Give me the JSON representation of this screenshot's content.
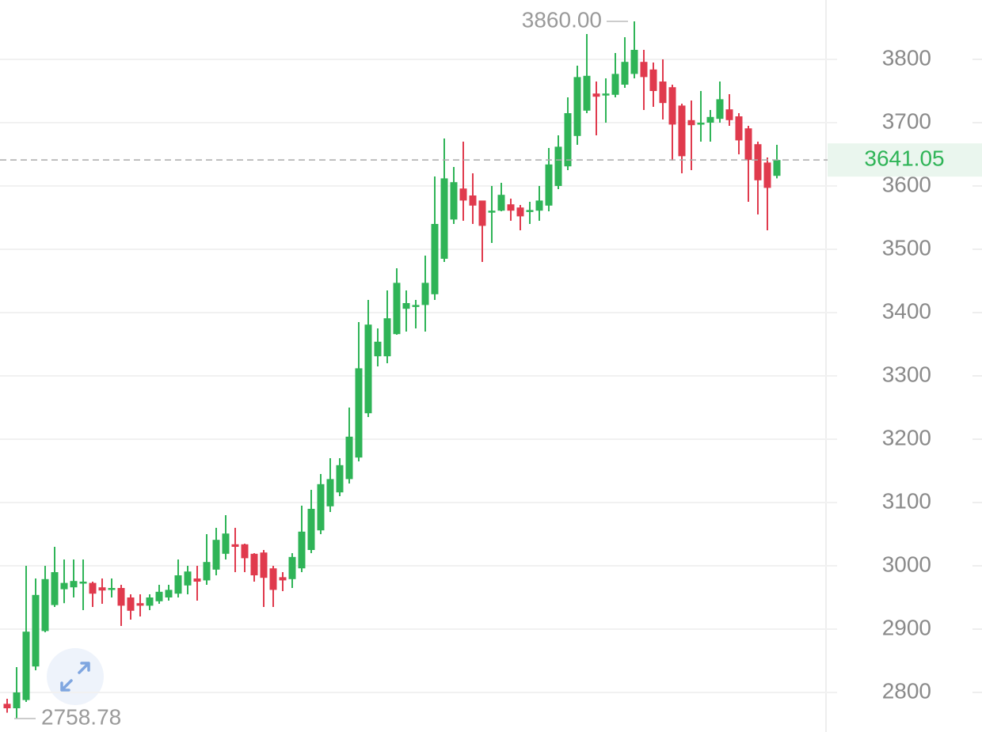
{
  "chart_data": {
    "type": "candlestick",
    "up_color": "#2fb457",
    "down_color": "#e03a4d",
    "ylim": [
      2737.5,
      3893.75
    ],
    "yticks": [
      2800,
      2900,
      3000,
      3100,
      3200,
      3300,
      3400,
      3500,
      3600,
      3700,
      3800
    ],
    "grid": true,
    "open": [
      2782,
      2775,
      2788,
      2841,
      2897,
      2938,
      2963,
      2966,
      2974,
      2973,
      2966,
      2962,
      2965,
      2950,
      2941,
      2937,
      2944,
      2950,
      2956,
      2969,
      2980,
      2977,
      2994,
      3019,
      3034,
      3034,
      3019,
      3021,
      2996,
      2982,
      2979,
      2996,
      3025,
      3056,
      3094,
      3116,
      3137,
      3171,
      3241,
      3331,
      3331,
      3366,
      3406,
      3410,
      3412,
      3429,
      3485,
      3547,
      3596,
      3585,
      3577,
      3559,
      3561,
      3571,
      3566,
      3560,
      3561,
      3569,
      3600,
      3631,
      3679,
      3719,
      3746,
      3745,
      3744,
      3760,
      3777,
      3796,
      3784,
      3765,
      3756,
      3727,
      3704,
      3697,
      3700,
      3706,
      3721,
      3710,
      3691,
      3666,
      3637,
      3616
    ],
    "high": [
      2790,
      2840,
      3000,
      2980,
      3000,
      3030,
      3010,
      3010,
      3010,
      2975,
      2980,
      2980,
      2970,
      2955,
      2955,
      2955,
      2970,
      2970,
      3010,
      3000,
      3000,
      3050,
      3060,
      3080,
      3060,
      3035,
      3020,
      3025,
      3000,
      2990,
      3020,
      3095,
      3120,
      3145,
      3170,
      3170,
      3250,
      3385,
      3420,
      3375,
      3435,
      3470,
      3435,
      3420,
      3490,
      3615,
      3675,
      3630,
      3670,
      3620,
      3575,
      3600,
      3605,
      3580,
      3570,
      3575,
      3600,
      3660,
      3680,
      3740,
      3790,
      3840,
      3765,
      3770,
      3810,
      3835,
      3860,
      3815,
      3795,
      3800,
      3760,
      3730,
      3735,
      3750,
      3720,
      3765,
      3745,
      3715,
      3695,
      3670,
      3645,
      3665
    ],
    "low": [
      2768,
      2758.78,
      2785,
      2835,
      2895,
      2935,
      2941,
      2950,
      2930,
      2935,
      2940,
      2950,
      2905,
      2915,
      2920,
      2930,
      2940,
      2945,
      2950,
      2955,
      2945,
      2970,
      2985,
      3010,
      2990,
      2990,
      2975,
      2935,
      2935,
      2960,
      2965,
      2990,
      3020,
      3050,
      3085,
      3110,
      3130,
      3165,
      3235,
      3315,
      3320,
      3365,
      3370,
      3375,
      3370,
      3420,
      3480,
      3540,
      3545,
      3540,
      3480,
      3510,
      3560,
      3545,
      3530,
      3540,
      3545,
      3560,
      3595,
      3625,
      3665,
      3715,
      3680,
      3700,
      3740,
      3755,
      3770,
      3720,
      3725,
      3705,
      3640,
      3620,
      3625,
      3670,
      3670,
      3700,
      3695,
      3650,
      3575,
      3555,
      3530,
      3612
    ],
    "close": [
      2775,
      2800,
      2896,
      2954,
      2979,
      2990,
      2973,
      2976,
      2975,
      2956,
      2961,
      2965,
      2937,
      2929,
      2937,
      2950,
      2959,
      2962,
      2985,
      2991,
      2975,
      3006,
      3041,
      3051,
      3030,
      3012,
      2985,
      2981,
      2962,
      2977,
      3014,
      3054,
      3090,
      3129,
      3137,
      3159,
      3204,
      3312,
      3381,
      3354,
      3391,
      3447,
      3415,
      3412,
      3447,
      3540,
      3612,
      3606,
      3577,
      3569,
      3537,
      3561,
      3586,
      3561,
      3552,
      3562,
      3577,
      3634,
      3662,
      3715,
      3772,
      3774,
      3741,
      3746,
      3777,
      3796,
      3815,
      3772,
      3750,
      3731,
      3697,
      3647,
      3696,
      3700,
      3709,
      3737,
      3704,
      3672,
      3641,
      3609,
      3597,
      3641.05
    ],
    "max_marker": {
      "value": 3860,
      "label": "3860.00"
    },
    "min_marker": {
      "value": 2758.78,
      "label": "2758.78"
    },
    "last_price": {
      "value": 3641.05,
      "label": "3641.05"
    }
  }
}
